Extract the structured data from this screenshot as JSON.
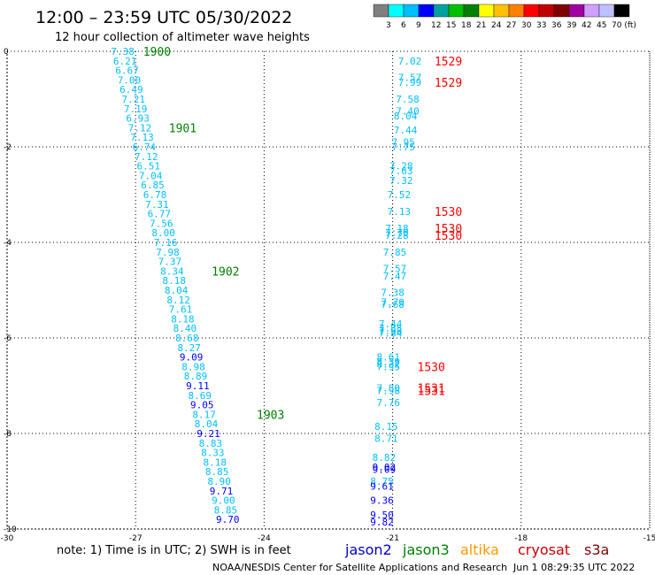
{
  "header": {
    "title": "12:00 – 23:59 UTC 05/30/2022",
    "subtitle": "12 hour collection of altimeter wave heights"
  },
  "colorbar": {
    "colors": [
      "#808080",
      "#00ffff",
      "#00bfff",
      "#0000ff",
      "#00a0a0",
      "#00c000",
      "#008000",
      "#ffff00",
      "#ffc000",
      "#ff8000",
      "#ff0000",
      "#c00000",
      "#800000",
      "#a000a0",
      "#d0a0ff",
      "#c0c0ff",
      "#000000"
    ],
    "labels": [
      "3",
      "6",
      "9",
      "12",
      "15",
      "18",
      "21",
      "24",
      "27",
      "30",
      "33",
      "36",
      "39",
      "42",
      "45",
      "70 (ft)"
    ]
  },
  "axes": {
    "x_ticks": [
      "-30",
      "-27",
      "-24",
      "-21",
      "-18",
      "-15"
    ],
    "y_ticks": [
      "0",
      "-2",
      "-4",
      "-6",
      "-8",
      "-10"
    ]
  },
  "footer": {
    "note": "note: 1) Time is in UTC; 2) SWH is in feet",
    "legend": [
      {
        "name": "jason2",
        "color": "#0000cc"
      },
      {
        "name": "jason3",
        "color": "#008000"
      },
      {
        "name": "altika",
        "color": "#ff9900"
      },
      {
        "name": "cryosat",
        "color": "#cc0000"
      },
      {
        "name": "s3a",
        "color": "#800000"
      }
    ],
    "credit": "NOAA/NESDIS Center for Satellite Applications and Research",
    "timestamp": "Jun  1 08:29:35 UTC 2022"
  },
  "chart_data": {
    "type": "scatter",
    "xlim": [
      -30,
      -15
    ],
    "ylim": [
      -10,
      0
    ],
    "grid": true,
    "series": [
      {
        "name": "jason3",
        "color_rule": "by SWH per colorbar",
        "points": [
          {
            "x": -27.3,
            "y": 0.0,
            "v": "7.38"
          },
          {
            "x": -27.25,
            "y": -0.2,
            "v": "6.21"
          },
          {
            "x": -27.2,
            "y": -0.4,
            "v": "6.67"
          },
          {
            "x": -27.15,
            "y": -0.6,
            "v": "7.00"
          },
          {
            "x": -27.1,
            "y": -0.8,
            "v": "6.49"
          },
          {
            "x": -27.05,
            "y": -1.0,
            "v": "7.21"
          },
          {
            "x": -27.0,
            "y": -1.2,
            "v": "7.19"
          },
          {
            "x": -26.95,
            "y": -1.4,
            "v": "6.93"
          },
          {
            "x": -26.9,
            "y": -1.6,
            "v": "7.12"
          },
          {
            "x": -26.85,
            "y": -1.8,
            "v": "7.13"
          },
          {
            "x": -26.8,
            "y": -2.0,
            "v": "6.74"
          },
          {
            "x": -26.75,
            "y": -2.2,
            "v": "7.12"
          },
          {
            "x": -26.7,
            "y": -2.4,
            "v": "6.51"
          },
          {
            "x": -26.65,
            "y": -2.6,
            "v": "7.04"
          },
          {
            "x": -26.6,
            "y": -2.8,
            "v": "6.85"
          },
          {
            "x": -26.55,
            "y": -3.0,
            "v": "6.78"
          },
          {
            "x": -26.5,
            "y": -3.2,
            "v": "7.31"
          },
          {
            "x": -26.45,
            "y": -3.4,
            "v": "6.77"
          },
          {
            "x": -26.4,
            "y": -3.6,
            "v": "7.56"
          },
          {
            "x": -26.35,
            "y": -3.8,
            "v": "8.00"
          },
          {
            "x": -26.3,
            "y": -4.0,
            "v": "7.16"
          },
          {
            "x": -26.25,
            "y": -4.2,
            "v": "7.98"
          },
          {
            "x": -26.2,
            "y": -4.4,
            "v": "7.37"
          },
          {
            "x": -26.15,
            "y": -4.6,
            "v": "8.34"
          },
          {
            "x": -26.1,
            "y": -4.8,
            "v": "8.18"
          },
          {
            "x": -26.05,
            "y": -5.0,
            "v": "8.04"
          },
          {
            "x": -26.0,
            "y": -5.2,
            "v": "8.12"
          },
          {
            "x": -25.95,
            "y": -5.4,
            "v": "7.61"
          },
          {
            "x": -25.9,
            "y": -5.6,
            "v": "8.18"
          },
          {
            "x": -25.85,
            "y": -5.8,
            "v": "8.40"
          },
          {
            "x": -25.8,
            "y": -6.0,
            "v": "8.68"
          },
          {
            "x": -25.75,
            "y": -6.2,
            "v": "8.27"
          },
          {
            "x": -25.7,
            "y": -6.4,
            "v": "9.09"
          },
          {
            "x": -25.65,
            "y": -6.6,
            "v": "8.98"
          },
          {
            "x": -25.6,
            "y": -6.8,
            "v": "8.89"
          },
          {
            "x": -25.55,
            "y": -7.0,
            "v": "9.11"
          },
          {
            "x": -25.5,
            "y": -7.2,
            "v": "8.69"
          },
          {
            "x": -25.45,
            "y": -7.4,
            "v": "9.05"
          },
          {
            "x": -25.4,
            "y": -7.6,
            "v": "8.17"
          },
          {
            "x": -25.35,
            "y": -7.8,
            "v": "8.04"
          },
          {
            "x": -25.3,
            "y": -8.0,
            "v": "9.21"
          },
          {
            "x": -25.25,
            "y": -8.2,
            "v": "8.83"
          },
          {
            "x": -25.2,
            "y": -8.4,
            "v": "8.33"
          },
          {
            "x": -25.15,
            "y": -8.6,
            "v": "8.18"
          },
          {
            "x": -25.1,
            "y": -8.8,
            "v": "8.85"
          },
          {
            "x": -25.05,
            "y": -9.0,
            "v": "8.90"
          },
          {
            "x": -25.0,
            "y": -9.2,
            "v": "9.71"
          },
          {
            "x": -24.95,
            "y": -9.4,
            "v": "9.00"
          },
          {
            "x": -24.9,
            "y": -9.6,
            "v": "8.85"
          },
          {
            "x": -24.85,
            "y": -9.8,
            "v": "9.70"
          }
        ],
        "time_labels": [
          {
            "x": -26.5,
            "y": 0.0,
            "t": "1900"
          },
          {
            "x": -25.9,
            "y": -1.6,
            "t": "1901"
          },
          {
            "x": -24.9,
            "y": -4.6,
            "t": "1902"
          },
          {
            "x": -23.85,
            "y": -7.6,
            "t": "1903"
          }
        ]
      },
      {
        "name": "cryosat",
        "color_rule": "by SWH per colorbar",
        "points": [
          {
            "x": -20.6,
            "y": -0.2,
            "v": "7.02"
          },
          {
            "x": -20.6,
            "y": -0.55,
            "v": "7.57"
          },
          {
            "x": -20.6,
            "y": -0.65,
            "v": "7.99"
          },
          {
            "x": -20.65,
            "y": -1.0,
            "v": "7.58"
          },
          {
            "x": -20.65,
            "y": -1.25,
            "v": "7.40"
          },
          {
            "x": -20.7,
            "y": -1.35,
            "v": "8.04"
          },
          {
            "x": -20.7,
            "y": -1.65,
            "v": "7.44"
          },
          {
            "x": -20.75,
            "y": -1.9,
            "v": "7.95"
          },
          {
            "x": -20.75,
            "y": -2.0,
            "v": "7.75"
          },
          {
            "x": -20.8,
            "y": -2.4,
            "v": "7.28"
          },
          {
            "x": -20.8,
            "y": -2.5,
            "v": "7.63"
          },
          {
            "x": -20.8,
            "y": -2.7,
            "v": "7.32"
          },
          {
            "x": -20.85,
            "y": -3.0,
            "v": "7.52"
          },
          {
            "x": -20.85,
            "y": -3.35,
            "v": "7.13"
          },
          {
            "x": -20.9,
            "y": -3.7,
            "v": "7.18"
          },
          {
            "x": -20.9,
            "y": -3.8,
            "v": "7.70"
          },
          {
            "x": -20.9,
            "y": -3.85,
            "v": "7.28"
          },
          {
            "x": -20.95,
            "y": -4.2,
            "v": "7.85"
          },
          {
            "x": -20.95,
            "y": -4.55,
            "v": "7.57"
          },
          {
            "x": -20.95,
            "y": -4.7,
            "v": "7.47"
          },
          {
            "x": -21.0,
            "y": -5.05,
            "v": "7.38"
          },
          {
            "x": -21.0,
            "y": -5.25,
            "v": "7.70"
          },
          {
            "x": -21.0,
            "y": -5.3,
            "v": "7.68"
          },
          {
            "x": -21.05,
            "y": -5.7,
            "v": "7.44"
          },
          {
            "x": -21.05,
            "y": -5.8,
            "v": "7.85"
          },
          {
            "x": -21.05,
            "y": -5.85,
            "v": "7.58"
          },
          {
            "x": -21.05,
            "y": -5.9,
            "v": "7.84"
          },
          {
            "x": -21.1,
            "y": -6.4,
            "v": "8.61"
          },
          {
            "x": -21.1,
            "y": -6.5,
            "v": "8.39"
          },
          {
            "x": -21.1,
            "y": -6.55,
            "v": "8.32"
          },
          {
            "x": -21.1,
            "y": -6.6,
            "v": "7.95"
          },
          {
            "x": -21.1,
            "y": -7.05,
            "v": "7.80"
          },
          {
            "x": -21.1,
            "y": -7.1,
            "v": "7.98"
          },
          {
            "x": -21.1,
            "y": -7.35,
            "v": "7.76"
          },
          {
            "x": -21.15,
            "y": -7.85,
            "v": "8.15"
          },
          {
            "x": -21.15,
            "y": -8.1,
            "v": "8.71"
          },
          {
            "x": -21.2,
            "y": -8.5,
            "v": "8.82"
          },
          {
            "x": -21.2,
            "y": -8.7,
            "v": "9.02"
          },
          {
            "x": -21.2,
            "y": -8.75,
            "v": "9.09"
          },
          {
            "x": -21.25,
            "y": -9.0,
            "v": "8.75"
          },
          {
            "x": -21.25,
            "y": -9.1,
            "v": "9.61"
          },
          {
            "x": -21.25,
            "y": -9.4,
            "v": "9.36"
          },
          {
            "x": -21.25,
            "y": -9.7,
            "v": "9.50"
          },
          {
            "x": -21.25,
            "y": -9.85,
            "v": "9.82"
          }
        ],
        "time_labels": [
          {
            "x": -19.7,
            "y": -0.2,
            "t": "1529"
          },
          {
            "x": -19.7,
            "y": -0.65,
            "t": "1529"
          },
          {
            "x": -19.7,
            "y": -3.35,
            "t": "1530"
          },
          {
            "x": -19.7,
            "y": -3.7,
            "t": "1530"
          },
          {
            "x": -19.7,
            "y": -3.85,
            "t": "1530"
          },
          {
            "x": -20.1,
            "y": -6.6,
            "t": "1530"
          },
          {
            "x": -20.1,
            "y": -7.05,
            "t": "1531"
          },
          {
            "x": -20.1,
            "y": -7.1,
            "t": "1531"
          }
        ]
      }
    ]
  }
}
